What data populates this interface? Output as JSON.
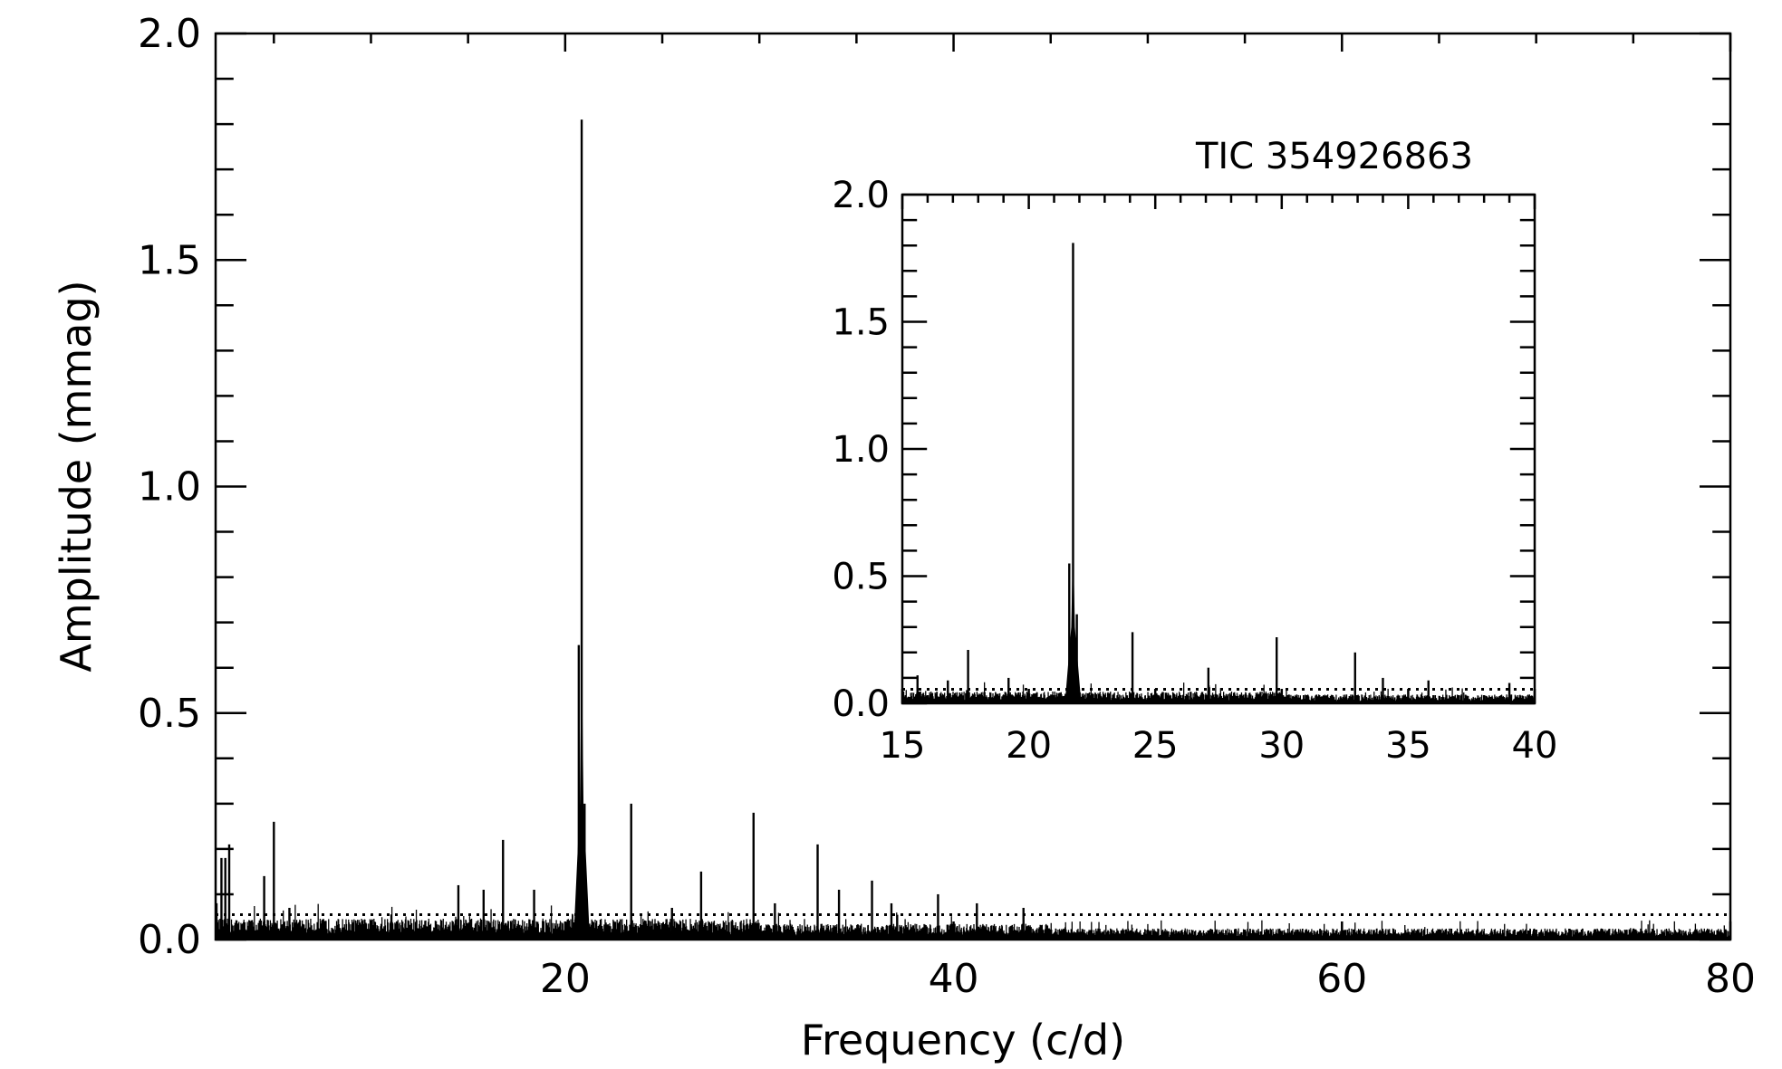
{
  "chart_data": [
    {
      "type": "line",
      "panel": "main",
      "xlabel": "Frequency (c/d)",
      "ylabel": "Amplitude (mmag)",
      "xlim": [
        2,
        80
      ],
      "ylim": [
        0,
        2.0
      ],
      "x_ticks": [
        20,
        40,
        60,
        80
      ],
      "x_tick_labels": [
        "20",
        "40",
        "60",
        "80"
      ],
      "y_ticks": [
        0.0,
        0.5,
        1.0,
        1.5,
        2.0
      ],
      "y_tick_labels": [
        "0.0",
        "0.5",
        "1.0",
        "1.5",
        "2.0"
      ],
      "threshold": 0.055,
      "grid": false,
      "series": [
        {
          "peaks": [
            {
              "x": 2.3,
              "y": 0.18
            },
            {
              "x": 2.5,
              "y": 0.18
            },
            {
              "x": 2.7,
              "y": 0.21
            },
            {
              "x": 4.5,
              "y": 0.14
            },
            {
              "x": 5.0,
              "y": 0.26
            },
            {
              "x": 5.8,
              "y": 0.07
            },
            {
              "x": 14.5,
              "y": 0.12
            },
            {
              "x": 15.8,
              "y": 0.11
            },
            {
              "x": 16.8,
              "y": 0.22
            },
            {
              "x": 18.4,
              "y": 0.11
            },
            {
              "x": 20.7,
              "y": 0.65
            },
            {
              "x": 20.85,
              "y": 1.81
            },
            {
              "x": 21.0,
              "y": 0.3
            },
            {
              "x": 23.4,
              "y": 0.3
            },
            {
              "x": 25.5,
              "y": 0.07
            },
            {
              "x": 27.0,
              "y": 0.15
            },
            {
              "x": 29.7,
              "y": 0.28
            },
            {
              "x": 30.8,
              "y": 0.08
            },
            {
              "x": 33.0,
              "y": 0.21
            },
            {
              "x": 34.1,
              "y": 0.11
            },
            {
              "x": 35.8,
              "y": 0.13
            },
            {
              "x": 36.8,
              "y": 0.08
            },
            {
              "x": 39.2,
              "y": 0.1
            },
            {
              "x": 41.2,
              "y": 0.08
            },
            {
              "x": 43.6,
              "y": 0.07
            }
          ]
        }
      ]
    },
    {
      "type": "line",
      "panel": "inset",
      "title": "TIC 354926863",
      "xlim": [
        15,
        40
      ],
      "ylim": [
        0,
        2.0
      ],
      "x_ticks": [
        15,
        20,
        25,
        30,
        35,
        40
      ],
      "x_tick_labels": [
        "15",
        "20",
        "25",
        "30",
        "35",
        "40"
      ],
      "y_ticks": [
        0.0,
        0.5,
        1.0,
        1.5,
        2.0
      ],
      "y_tick_labels": [
        "0.0",
        "0.5",
        "1.0",
        "1.5",
        "2.0"
      ],
      "threshold": 0.055,
      "grid": false,
      "series": [
        {
          "peaks": [
            {
              "x": 15.6,
              "y": 0.11
            },
            {
              "x": 16.8,
              "y": 0.09
            },
            {
              "x": 17.6,
              "y": 0.21
            },
            {
              "x": 19.2,
              "y": 0.1
            },
            {
              "x": 21.6,
              "y": 0.55
            },
            {
              "x": 21.75,
              "y": 1.81
            },
            {
              "x": 21.9,
              "y": 0.35
            },
            {
              "x": 24.1,
              "y": 0.28
            },
            {
              "x": 27.1,
              "y": 0.14
            },
            {
              "x": 29.8,
              "y": 0.26
            },
            {
              "x": 32.9,
              "y": 0.2
            },
            {
              "x": 34.0,
              "y": 0.1
            },
            {
              "x": 35.8,
              "y": 0.09
            },
            {
              "x": 39.0,
              "y": 0.08
            }
          ]
        }
      ]
    }
  ]
}
